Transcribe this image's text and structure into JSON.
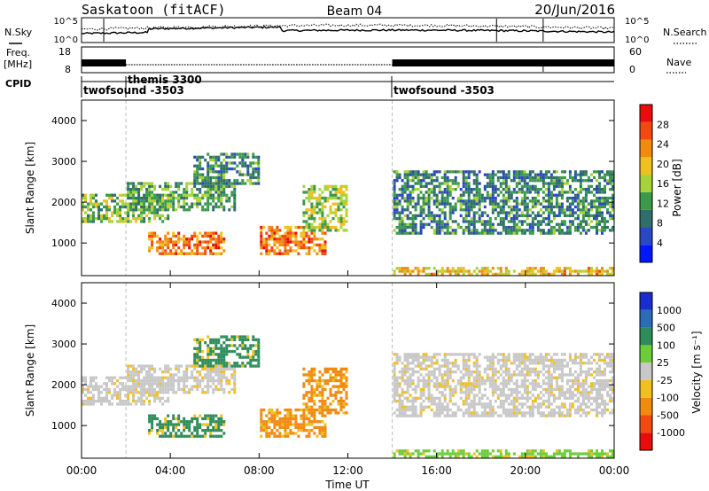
{
  "header": {
    "station": "Saskatoon (fitACF)",
    "beam": "Beam 04",
    "date": "20/Jun/2016"
  },
  "noise_panel": {
    "left_label": "N.Sky",
    "left_ticks": [
      "10^5",
      "10^0"
    ],
    "right_label": "N.Search",
    "right_ticks": [
      "10^5",
      "10^0"
    ]
  },
  "freq_panel": {
    "left_label_line1": "Freq.",
    "left_label_line2": "[MHz]",
    "left_ticks": [
      "18",
      "8"
    ],
    "right_label": "Nave",
    "right_ticks": [
      "60",
      "0"
    ]
  },
  "cpid_panel": {
    "label": "CPID",
    "segments": [
      {
        "name": "twofsound -3503",
        "start_hour": 0,
        "end_hour": 2
      },
      {
        "name": "themis 3300",
        "start_hour": 2,
        "end_hour": 14
      },
      {
        "name": "twofsound -3503",
        "start_hour": 14,
        "end_hour": 24
      }
    ]
  },
  "power_panel": {
    "ylabel": "Slant Range [km]",
    "yticks": [
      "4000",
      "3000",
      "2000",
      "1000"
    ],
    "colorbar_label": "Power [dB]",
    "colorbar_ticks": [
      "28",
      "24",
      "20",
      "16",
      "12",
      "8",
      "4"
    ],
    "colors": [
      "#0018ff",
      "#2a48c0",
      "#2f6e6a",
      "#3a9a4a",
      "#a8d23a",
      "#f0c020",
      "#f08a10",
      "#f04a10",
      "#e80c0c"
    ]
  },
  "velocity_panel": {
    "ylabel": "Slant Range [km]",
    "yticks": [
      "4000",
      "3000",
      "2000",
      "1000"
    ],
    "colorbar_label": "Velocity [m s⁻¹]",
    "colorbar_ticks": [
      "1000",
      "500",
      "100",
      "25",
      "-25",
      "-100",
      "-500",
      "-1000"
    ],
    "colors": [
      "#1a2ecc",
      "#2a6db4",
      "#2e8c5a",
      "#6ccc3a",
      "#c8c8c8",
      "#f0c020",
      "#f08a10",
      "#f04a10",
      "#e80c0c"
    ]
  },
  "xaxis": {
    "ticks": [
      "00:00",
      "04:00",
      "08:00",
      "12:00",
      "16:00",
      "20:00",
      "00:00"
    ],
    "label": "Time UT"
  },
  "chart_data": {
    "type": "heatmap",
    "title": "Saskatoon (fitACF)",
    "x_range_hours": [
      0,
      24
    ],
    "y_range_km": [
      200,
      4500
    ],
    "gates": 75,
    "time_bins": 300,
    "power_clusters": [
      {
        "t": [
          0,
          4
        ],
        "r": [
          1500,
          2200
        ],
        "db": 14
      },
      {
        "t": [
          3,
          6.5
        ],
        "r": [
          700,
          1300
        ],
        "db": 24
      },
      {
        "t": [
          2,
          7
        ],
        "r": [
          1800,
          2500
        ],
        "db": 12
      },
      {
        "t": [
          5,
          8
        ],
        "r": [
          2400,
          3200
        ],
        "db": 10
      },
      {
        "t": [
          8,
          11
        ],
        "r": [
          700,
          1400
        ],
        "db": 24
      },
      {
        "t": [
          10,
          12
        ],
        "r": [
          1300,
          2400
        ],
        "db": 16
      },
      {
        "t": [
          14,
          24
        ],
        "r": [
          1200,
          2800
        ],
        "db": 10
      },
      {
        "t": [
          14,
          24
        ],
        "r": [
          200,
          450
        ],
        "db": 20
      }
    ]
  }
}
